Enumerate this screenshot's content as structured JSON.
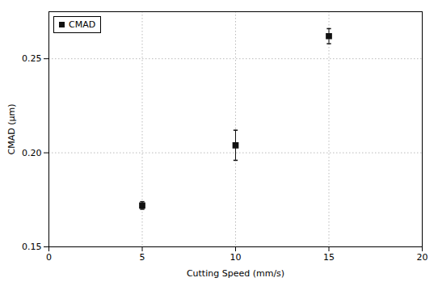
{
  "chart_data": {
    "type": "scatter",
    "x": [
      5,
      10,
      15
    ],
    "series": [
      {
        "name": "CMAD",
        "color": "#111111",
        "marker": "square",
        "values": [
          0.172,
          0.204,
          0.262
        ],
        "yerr": [
          0.002,
          0.008,
          0.004
        ]
      }
    ],
    "xlabel": "Cutting Speed (mm/s)",
    "ylabel": "CMAD (μm)",
    "xlim": [
      0,
      20
    ],
    "ylim": [
      0.15,
      0.275
    ],
    "xticks": [
      0,
      5,
      10,
      15,
      20
    ],
    "yticks": [
      0.15,
      {
        "value": 0.2,
        "label": "0.20"
      },
      0.25
    ],
    "grid": true,
    "legend": "upper left"
  }
}
